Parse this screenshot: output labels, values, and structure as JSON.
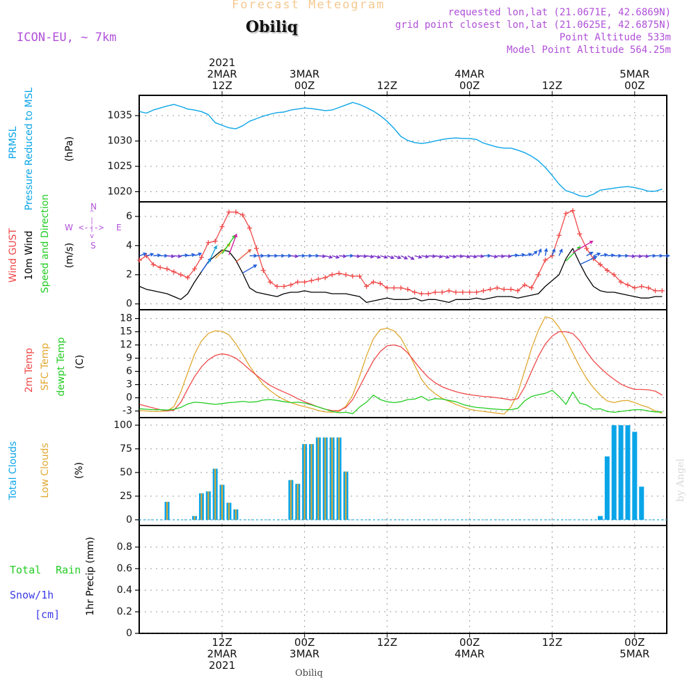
{
  "header": {
    "title_top": "Forecast Meteogram",
    "station": "Obiliq",
    "model": "ICON-EU, ~ 7km",
    "requested": "requested lon,lat (21.0671E, 42.6869N)",
    "gridpoint": "grid point closest lon,lat (21.0625E, 42.6875N)",
    "point_alt": "Point Altitude 533m",
    "model_alt": "Model Point Altitude 564.25m",
    "footer_station": "Obiliq",
    "watermark": "by Angel"
  },
  "colors": {
    "pressure": "#0aa5e8",
    "gust": "#f04848",
    "wind": "#000000",
    "temp2m": "#f04848",
    "sfctemp": "#e0a830",
    "dewpt": "#22cc22",
    "total_clouds": "#0aa5e8",
    "low_clouds": "#e0a830",
    "rain": "#22cc22",
    "snow": "#3a3ae8",
    "compass": "#b050d8",
    "header_purple": "#b050d8",
    "title_orange": "#f5c890"
  },
  "panel_labels": {
    "p1": {
      "l1": "PRMSL",
      "l2": "Pressure Reduced to MSL",
      "unit": "(hPa)"
    },
    "p2": {
      "l1": "Wind GUST",
      "l2": "10m Wind",
      "l3": "Speed and Direction",
      "unit": "(m/s)"
    },
    "p3": {
      "l1": "2m Temp",
      "l2": "SFC Temp",
      "l3": "dewpt Temp",
      "unit": "(C)"
    },
    "p4": {
      "l1": "Total Clouds",
      "l2": "Low Clouds",
      "unit": "(%)"
    },
    "p5": {
      "l1a": "Total",
      "l1b": "Rain",
      "l2": "Snow/1h",
      "l3": "[cm]",
      "unit": "1hr Precip (mm)"
    },
    "compass": {
      "n": "N",
      "s": "S",
      "w": "W",
      "e": "E",
      "ns": "^\n|\n|\nv",
      "we": "<--->"
    }
  },
  "time_axis": {
    "top": [
      {
        "h": 12,
        "lines": [
          "2021",
          "2MAR",
          "12Z"
        ]
      },
      {
        "h": 24,
        "lines": [
          "3MAR",
          "00Z"
        ]
      },
      {
        "h": 36,
        "lines": [
          "12Z"
        ]
      },
      {
        "h": 48,
        "lines": [
          "4MAR",
          "00Z"
        ]
      },
      {
        "h": 60,
        "lines": [
          "12Z"
        ]
      },
      {
        "h": 72,
        "lines": [
          "5MAR",
          "00Z"
        ]
      }
    ],
    "bottom": [
      {
        "h": 12,
        "lines": [
          "12Z",
          "2MAR",
          "2021"
        ]
      },
      {
        "h": 24,
        "lines": [
          "00Z",
          "3MAR"
        ]
      },
      {
        "h": 36,
        "lines": [
          "12Z"
        ]
      },
      {
        "h": 48,
        "lines": [
          "00Z",
          "4MAR"
        ]
      },
      {
        "h": 60,
        "lines": [
          "12Z"
        ]
      },
      {
        "h": 72,
        "lines": [
          "00Z",
          "5MAR"
        ]
      }
    ]
  },
  "chart_data": [
    {
      "type": "line",
      "title": "PRMSL Pressure Reduced to MSL",
      "ylabel": "(hPa)",
      "x_hours": [
        0,
        1,
        2,
        3,
        4,
        5,
        6,
        7,
        8,
        9,
        10,
        11,
        12,
        13,
        14,
        15,
        16,
        17,
        18,
        19,
        20,
        21,
        22,
        23,
        24,
        25,
        26,
        27,
        28,
        29,
        30,
        31,
        32,
        33,
        34,
        35,
        36,
        37,
        38,
        39,
        40,
        41,
        42,
        43,
        44,
        45,
        46,
        47,
        48,
        49,
        50,
        51,
        52,
        53,
        54,
        55,
        56,
        57,
        58,
        59,
        60,
        61,
        62,
        63,
        64,
        65,
        66,
        67,
        68,
        69,
        70,
        71,
        72,
        73,
        74,
        75,
        76
      ],
      "ylim": [
        1018,
        1039
      ],
      "yticks": [
        1020,
        1025,
        1030,
        1035
      ],
      "series": [
        {
          "name": "PRMSL",
          "values": [
            1035.8,
            1035.5,
            1036.1,
            1036.5,
            1036.9,
            1037.2,
            1036.8,
            1036.3,
            1036.1,
            1035.8,
            1035.2,
            1033.6,
            1033.1,
            1032.6,
            1032.4,
            1033.0,
            1033.9,
            1034.4,
            1034.9,
            1035.3,
            1035.6,
            1035.7,
            1036.1,
            1036.3,
            1036.5,
            1036.4,
            1036.2,
            1036.0,
            1036.1,
            1036.6,
            1037.1,
            1037.6,
            1037.2,
            1036.6,
            1035.9,
            1035.0,
            1033.9,
            1032.5,
            1030.9,
            1030.1,
            1029.7,
            1029.5,
            1029.7,
            1030.0,
            1030.3,
            1030.5,
            1030.6,
            1030.5,
            1030.5,
            1030.3,
            1029.6,
            1029.2,
            1028.8,
            1028.6,
            1028.6,
            1028.2,
            1027.7,
            1027.0,
            1026.1,
            1024.8,
            1023.2,
            1021.5,
            1020.2,
            1019.8,
            1019.2,
            1019.0,
            1019.5,
            1020.3,
            1020.5,
            1020.7,
            1020.9,
            1021.0,
            1020.8,
            1020.5,
            1020.1,
            1020.1,
            1020.5
          ]
        }
      ]
    },
    {
      "type": "line",
      "title": "Wind GUST / 10m Wind Speed and Direction",
      "ylabel": "(m/s)",
      "x_hours": [
        0,
        1,
        2,
        3,
        4,
        5,
        6,
        7,
        8,
        9,
        10,
        11,
        12,
        13,
        14,
        15,
        16,
        17,
        18,
        19,
        20,
        21,
        22,
        23,
        24,
        25,
        26,
        27,
        28,
        29,
        30,
        31,
        32,
        33,
        34,
        35,
        36,
        37,
        38,
        39,
        40,
        41,
        42,
        43,
        44,
        45,
        46,
        47,
        48,
        49,
        50,
        51,
        52,
        53,
        54,
        55,
        56,
        57,
        58,
        59,
        60,
        61,
        62,
        63,
        64,
        65,
        66,
        67,
        68,
        69,
        70,
        71,
        72,
        73,
        74,
        75,
        76
      ],
      "ylim": [
        -0.4,
        7.0
      ],
      "yticks": [
        0,
        2,
        4,
        6
      ],
      "series": [
        {
          "name": "Wind GUST",
          "values": [
            3.0,
            3.3,
            2.7,
            2.5,
            2.4,
            2.2,
            2.0,
            1.8,
            2.4,
            3.2,
            4.2,
            4.3,
            5.3,
            6.3,
            6.3,
            6.1,
            5.2,
            3.8,
            2.3,
            1.5,
            1.2,
            1.2,
            1.3,
            1.5,
            1.5,
            1.6,
            1.7,
            1.8,
            2.0,
            2.1,
            2.0,
            1.9,
            1.9,
            1.2,
            1.5,
            1.4,
            1.1,
            1.1,
            1.1,
            1.0,
            0.8,
            0.7,
            0.7,
            0.8,
            0.8,
            0.9,
            0.8,
            0.8,
            0.8,
            0.8,
            0.9,
            1.0,
            1.1,
            1.0,
            1.0,
            0.9,
            1.3,
            1.1,
            2.0,
            3.0,
            3.3,
            4.7,
            6.2,
            6.4,
            4.8,
            3.8,
            3.1,
            2.7,
            2.3,
            2.0,
            1.5,
            1.3,
            1.1,
            1.2,
            1.1,
            0.9,
            0.9
          ]
        },
        {
          "name": "10m Wind",
          "values": [
            1.2,
            1.0,
            0.9,
            0.8,
            0.7,
            0.5,
            0.3,
            0.7,
            1.5,
            2.2,
            2.9,
            3.3,
            3.7,
            3.6,
            3.0,
            2.1,
            1.1,
            0.8,
            0.7,
            0.6,
            0.5,
            0.7,
            0.8,
            0.8,
            0.9,
            0.8,
            0.8,
            0.8,
            0.7,
            0.7,
            0.7,
            0.6,
            0.5,
            0.1,
            0.2,
            0.3,
            0.4,
            0.3,
            0.3,
            0.3,
            0.4,
            0.2,
            0.3,
            0.3,
            0.2,
            0.1,
            0.3,
            0.3,
            0.3,
            0.4,
            0.3,
            0.4,
            0.5,
            0.5,
            0.5,
            0.4,
            0.5,
            0.6,
            0.7,
            1.2,
            1.6,
            2.0,
            3.1,
            3.8,
            2.8,
            1.9,
            1.2,
            0.9,
            0.8,
            0.8,
            0.7,
            0.6,
            0.5,
            0.4,
            0.4,
            0.5,
            0.5
          ]
        }
      ],
      "direction_deg": [
        250,
        255,
        265,
        270,
        275,
        275,
        265,
        260,
        250,
        215,
        205,
        225,
        215,
        200,
        230,
        240,
        270,
        270,
        270,
        270,
        270,
        270,
        275,
        270,
        270,
        270,
        275,
        285,
        285,
        275,
        270,
        275,
        275,
        280,
        285,
        285,
        290,
        290,
        295,
        300,
        285,
        280,
        275,
        280,
        285,
        280,
        275,
        280,
        280,
        275,
        270,
        280,
        275,
        275,
        265,
        260,
        255,
        230,
        200,
        190,
        200,
        205,
        225,
        240,
        245,
        240,
        250,
        260,
        265,
        270,
        270,
        275,
        275,
        275,
        270,
        270,
        270
      ]
    },
    {
      "type": "line",
      "title": "2m Temp / SFC Temp / dewpt Temp",
      "ylabel": "(C)",
      "x_hours": [
        0,
        1,
        2,
        3,
        4,
        5,
        6,
        7,
        8,
        9,
        10,
        11,
        12,
        13,
        14,
        15,
        16,
        17,
        18,
        19,
        20,
        21,
        22,
        23,
        24,
        25,
        26,
        27,
        28,
        29,
        30,
        31,
        32,
        33,
        34,
        35,
        36,
        37,
        38,
        39,
        40,
        41,
        42,
        43,
        44,
        45,
        46,
        47,
        48,
        49,
        50,
        51,
        52,
        53,
        54,
        55,
        56,
        57,
        58,
        59,
        60,
        61,
        62,
        63,
        64,
        65,
        66,
        67,
        68,
        69,
        70,
        71,
        72,
        73,
        74,
        75,
        76
      ],
      "ylim": [
        -4.5,
        20.0
      ],
      "yticks": [
        -3,
        0,
        3,
        6,
        9,
        12,
        15,
        18
      ],
      "series": [
        {
          "name": "2m Temp",
          "values": [
            -1.5,
            -1.9,
            -2.3,
            -2.7,
            -3.0,
            -2.8,
            -1.0,
            2.0,
            4.8,
            7.0,
            8.6,
            9.6,
            10.0,
            9.7,
            9.0,
            7.8,
            6.4,
            5.1,
            3.9,
            2.8,
            2.0,
            1.3,
            0.6,
            -0.2,
            -0.9,
            -1.5,
            -2.1,
            -2.6,
            -2.9,
            -2.9,
            -2.2,
            -0.4,
            2.5,
            5.5,
            8.4,
            10.5,
            11.8,
            12.0,
            11.6,
            10.2,
            8.2,
            6.3,
            4.6,
            3.4,
            2.5,
            1.9,
            1.4,
            1.0,
            0.7,
            0.5,
            0.3,
            0.2,
            0.0,
            -0.2,
            -0.5,
            -0.2,
            2.4,
            6.0,
            9.4,
            12.2,
            14.0,
            15.0,
            15.0,
            14.6,
            13.0,
            10.5,
            8.4,
            6.8,
            5.4,
            4.2,
            3.1,
            2.4,
            1.9,
            1.9,
            1.8,
            1.5,
            0.6
          ]
        },
        {
          "name": "SFC Temp",
          "values": [
            -2.9,
            -3.0,
            -3.1,
            -3.1,
            -3.0,
            -2.0,
            1.3,
            5.7,
            9.9,
            12.9,
            14.6,
            15.2,
            15.1,
            14.3,
            12.3,
            9.8,
            7.2,
            5.0,
            3.0,
            1.6,
            0.5,
            -0.4,
            -1.1,
            -1.6,
            -2.0,
            -2.4,
            -2.9,
            -3.2,
            -3.3,
            -3.1,
            -1.9,
            0.6,
            4.9,
            9.5,
            13.4,
            15.5,
            15.8,
            15.2,
            13.6,
            10.7,
            7.4,
            4.2,
            2.2,
            0.9,
            -0.1,
            -0.8,
            -1.5,
            -2.1,
            -2.6,
            -2.9,
            -3.1,
            -3.3,
            -3.5,
            -3.7,
            -2.1,
            1.1,
            6.1,
            11.2,
            15.3,
            18.4,
            18.0,
            16.0,
            13.3,
            10.2,
            7.1,
            4.4,
            2.3,
            0.6,
            -0.7,
            -1.1,
            -0.7,
            -0.6,
            -1.1,
            -1.7,
            -2.2,
            -3.0,
            -3.5
          ]
        },
        {
          "name": "dewpt Temp",
          "values": [
            -2.5,
            -2.6,
            -2.7,
            -2.7,
            -2.8,
            -2.6,
            -2.2,
            -1.4,
            -1.0,
            -1.1,
            -1.3,
            -1.5,
            -1.3,
            -1.1,
            -1.0,
            -0.8,
            -1.0,
            -0.9,
            -0.5,
            -0.4,
            -0.6,
            -0.9,
            -1.1,
            -1.0,
            -1.2,
            -1.6,
            -2.1,
            -2.6,
            -3.1,
            -3.4,
            -3.3,
            -3.6,
            -2.1,
            -1.0,
            0.6,
            -0.4,
            -0.9,
            -1.1,
            -0.9,
            -0.4,
            -0.3,
            0.3,
            -0.6,
            -0.2,
            -0.3,
            -0.6,
            -0.9,
            -1.5,
            -1.9,
            -2.2,
            -2.3,
            -2.5,
            -2.6,
            -2.7,
            -2.7,
            -2.4,
            -0.7,
            0.3,
            0.7,
            1.0,
            1.7,
            0.3,
            -1.5,
            1.3,
            -1.2,
            -1.6,
            -2.6,
            -2.5,
            -3.1,
            -3.3,
            -3.1,
            -2.9,
            -2.7,
            -2.7,
            -3.0,
            -3.2,
            -3.2
          ]
        }
      ]
    },
    {
      "type": "bar",
      "title": "Total Clouds / Low Clouds",
      "ylabel": "(%)",
      "ylim": [
        -6,
        108
      ],
      "yticks": [
        0,
        25,
        50,
        75,
        100
      ],
      "x_hours": [
        4,
        8,
        9,
        10,
        11,
        12,
        13,
        14,
        15,
        22,
        23,
        24,
        25,
        26,
        27,
        28,
        29,
        30,
        67,
        68,
        69,
        70,
        71,
        72,
        73
      ],
      "series": [
        {
          "name": "Total Clouds",
          "values": [
            19,
            4,
            28,
            30,
            54,
            37,
            18,
            11,
            0,
            42,
            38,
            80,
            80,
            87,
            87,
            87,
            87,
            51,
            4,
            67,
            100,
            100,
            100,
            93,
            35
          ]
        },
        {
          "name": "Low Clouds",
          "values": [
            19,
            4,
            28,
            30,
            54,
            37,
            18,
            11,
            0,
            42,
            38,
            80,
            80,
            87,
            87,
            87,
            87,
            51,
            0,
            0,
            0,
            0,
            0,
            0,
            0
          ]
        }
      ]
    },
    {
      "type": "bar",
      "title": "Total Rain / Snow 1hr Precip",
      "ylabel": "1hr Precip (mm)",
      "ylim": [
        0,
        1.0
      ],
      "yticks": [
        0,
        0.2,
        0.4,
        0.6,
        0.8
      ],
      "series": [
        {
          "name": "Total Rain",
          "values": []
        },
        {
          "name": "Snow/1h",
          "values": []
        }
      ]
    }
  ]
}
